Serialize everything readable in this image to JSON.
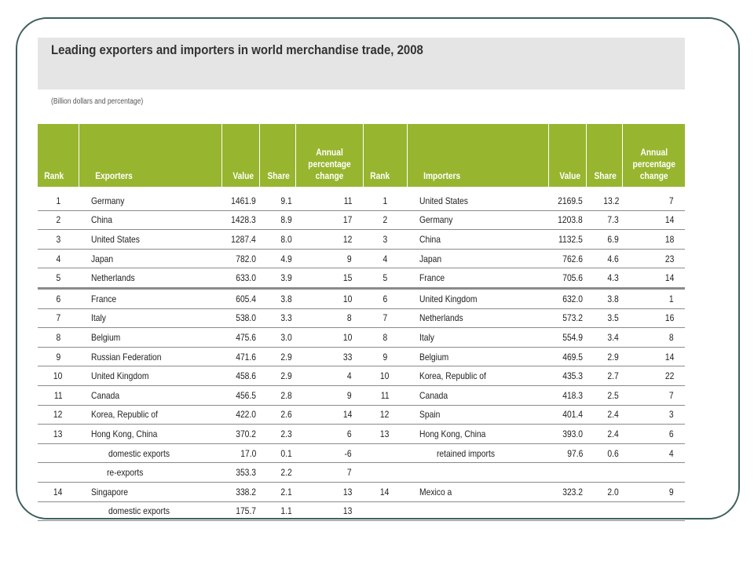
{
  "title": "Leading exporters and importers in world merchandise trade, 2008",
  "subtitle": "(Billion dollars and percentage)",
  "columns": {
    "rank": "Rank",
    "exporters": "Exporters",
    "value": "Value",
    "share": "Share",
    "change": "Annual percentage change",
    "importers": "Importers"
  },
  "rows": [
    {
      "er": "1",
      "en": "Germany",
      "ev": "1461.9",
      "es": "9.1",
      "ec": "11",
      "ir": "1",
      "in": "United States",
      "iv": "2169.5",
      "is": "13.2",
      "ic": "7"
    },
    {
      "er": "2",
      "en": "China",
      "ev": "1428.3",
      "es": "8.9",
      "ec": "17",
      "ir": "2",
      "in": "Germany",
      "iv": "1203.8",
      "is": "7.3",
      "ic": "14"
    },
    {
      "er": "3",
      "en": "United States",
      "ev": "1287.4",
      "es": "8.0",
      "ec": "12",
      "ir": "3",
      "in": "China",
      "iv": "1132.5",
      "is": "6.9",
      "ic": "18"
    },
    {
      "er": "4",
      "en": "Japan",
      "ev": "782.0",
      "es": "4.9",
      "ec": "9",
      "ir": "4",
      "in": "Japan",
      "iv": "762.6",
      "is": "4.6",
      "ic": "23"
    },
    {
      "er": "5",
      "en": "Netherlands",
      "ev": "633.0",
      "es": "3.9",
      "ec": "15",
      "ir": "5",
      "in": "France",
      "iv": "705.6",
      "is": "4.3",
      "ic": "14"
    },
    {
      "er": "6",
      "en": "France",
      "ev": "605.4",
      "es": "3.8",
      "ec": "10",
      "ir": "6",
      "in": "United Kingdom",
      "iv": "632.0",
      "is": "3.8",
      "ic": "1"
    },
    {
      "er": "7",
      "en": "Italy",
      "ev": "538.0",
      "es": "3.3",
      "ec": "8",
      "ir": "7",
      "in": "Netherlands",
      "iv": "573.2",
      "is": "3.5",
      "ic": "16"
    },
    {
      "er": "8",
      "en": "Belgium",
      "ev": "475.6",
      "es": "3.0",
      "ec": "10",
      "ir": "8",
      "in": "Italy",
      "iv": "554.9",
      "is": "3.4",
      "ic": "8"
    },
    {
      "er": "9",
      "en": "Russian Federation",
      "ev": "471.6",
      "es": "2.9",
      "ec": "33",
      "ir": "9",
      "in": "Belgium",
      "iv": "469.5",
      "is": "2.9",
      "ic": "14"
    },
    {
      "er": "10",
      "en": "United Kingdom",
      "ev": "458.6",
      "es": "2.9",
      "ec": "4",
      "ir": "10",
      "in": "Korea, Republic of",
      "iv": "435.3",
      "is": "2.7",
      "ic": "22"
    },
    {
      "er": "11",
      "en": "Canada",
      "ev": "456.5",
      "es": "2.8",
      "ec": "9",
      "ir": "11",
      "in": "Canada",
      "iv": "418.3",
      "is": "2.5",
      "ic": "7"
    },
    {
      "er": "12",
      "en": "Korea, Republic of",
      "ev": "422.0",
      "es": "2.6",
      "ec": "14",
      "ir": "12",
      "in": "Spain",
      "iv": "401.4",
      "is": "2.4",
      "ic": "3"
    },
    {
      "er": "13",
      "en": "Hong Kong, China",
      "ev": "370.2",
      "es": "2.3",
      "ec": "6",
      "ir": "13",
      "in": "Hong Kong, China",
      "iv": "393.0",
      "is": "2.4",
      "ic": "6"
    },
    {
      "er": "",
      "en": "domestic exports",
      "ev": "17.0",
      "es": "0.1",
      "ec": "-6",
      "ir": "",
      "in": "retained imports",
      "iv": "97.6",
      "is": "0.6",
      "ic": "4"
    },
    {
      "er": "",
      "en": "re-exports",
      "ev": "353.3",
      "es": "2.2",
      "ec": "7",
      "ir": "",
      "in": "",
      "iv": "",
      "is": "",
      "ic": ""
    },
    {
      "er": "14",
      "en": "Singapore",
      "ev": "338.2",
      "es": "2.1",
      "ec": "13",
      "ir": "14",
      "in": "Mexico a",
      "iv": "323.2",
      "is": "2.0",
      "ic": "9"
    },
    {
      "er": "",
      "en": "domestic exports",
      "ev": "175.7",
      "es": "1.1",
      "ec": "13",
      "ir": "",
      "in": "",
      "iv": "",
      "is": "",
      "ic": ""
    }
  ]
}
